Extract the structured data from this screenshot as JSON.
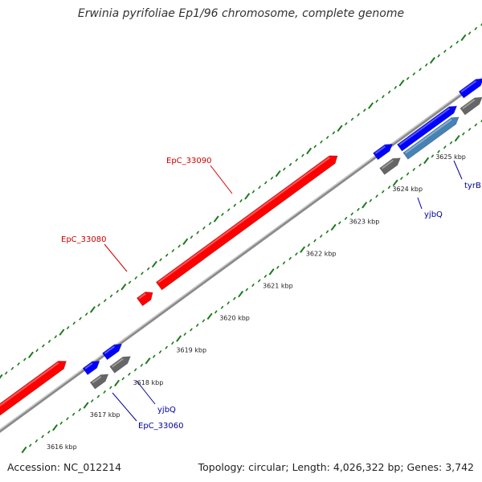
{
  "title": "Erwinia pyrifoliae Ep1/96 chromosome, complete genome",
  "footer": {
    "accession": "Accession: NC_012214",
    "summary": "Topology: circular; Length: 4,026,322 bp; Genes: 3,742"
  },
  "colors": {
    "forward_gene": "#ff0000",
    "reverse_gene": "#0000ff",
    "cds": "#666666",
    "highlight_gene": "#4682b4",
    "backbone": "#888888",
    "tick": "#1a7a1a",
    "red_label": "#cc0000",
    "blue_label": "#000099"
  },
  "ticks": [
    {
      "label": "3616 kbp"
    },
    {
      "label": "3617 kbp"
    },
    {
      "label": "3618 kbp"
    },
    {
      "label": "3619 kbp"
    },
    {
      "label": "3620 kbp"
    },
    {
      "label": "3621 kbp"
    },
    {
      "label": "3622 kbp"
    },
    {
      "label": "3623 kbp"
    },
    {
      "label": "3624 kbp"
    },
    {
      "label": "3625 kbp"
    }
  ],
  "gene_labels": [
    {
      "text": "EpC_33090"
    },
    {
      "text": "EpC_33080"
    },
    {
      "text": "yjbQ"
    },
    {
      "text": "tyrB"
    },
    {
      "text": "yjbQ"
    },
    {
      "text": "EpC_33060"
    }
  ]
}
